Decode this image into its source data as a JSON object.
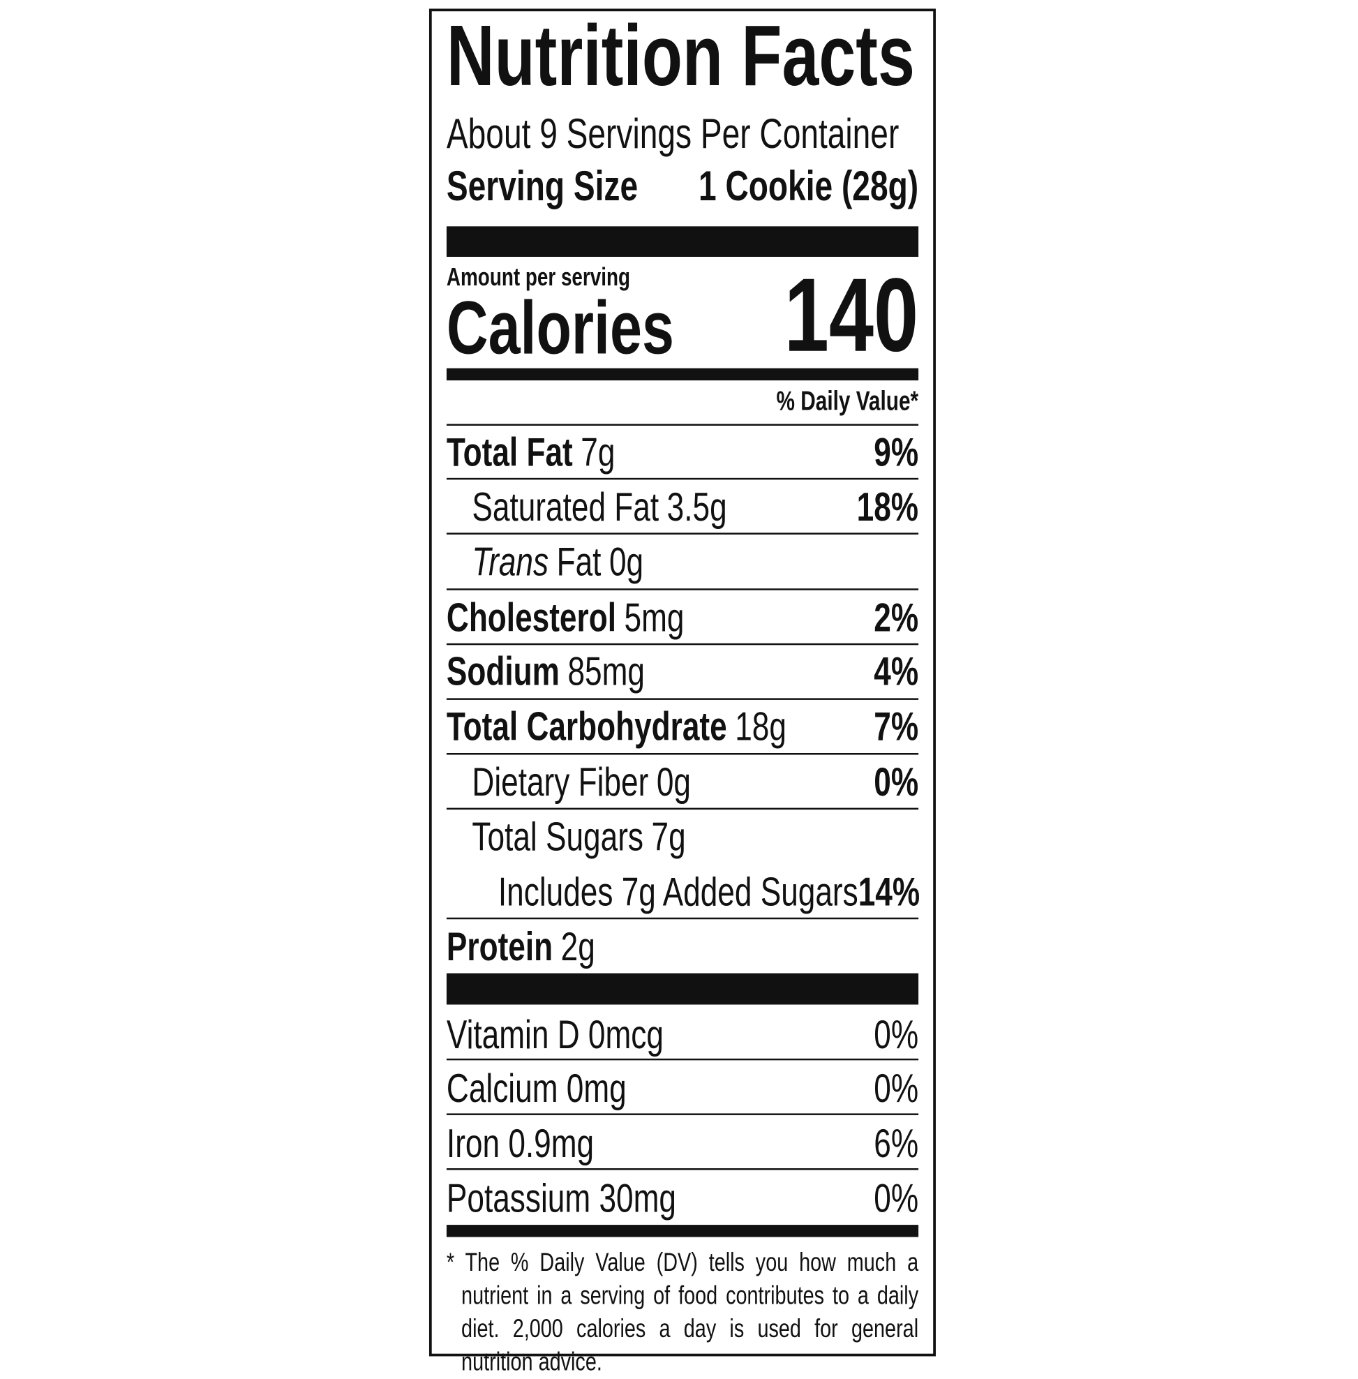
{
  "header": {
    "title": "Nutrition Facts",
    "servings": "About 9 Servings Per Container",
    "serving_size_label": "Serving Size",
    "serving_size_value": "1 Cookie (28g)"
  },
  "calories": {
    "amount_label": "Amount per serving",
    "label": "Calories",
    "value": "140"
  },
  "daily_value_header": "% Daily Value*",
  "nutrients": [
    {
      "name": "Total Fat",
      "amount": "7g",
      "dv": "9%"
    },
    {
      "name": "Saturated Fat",
      "amount": "3.5g",
      "dv": "18%"
    },
    {
      "name_italic": "Trans",
      "name": "Fat",
      "amount": "0g"
    },
    {
      "name": "Cholesterol",
      "amount": "5mg",
      "dv": "2%"
    },
    {
      "name": "Sodium",
      "amount": "85mg",
      "dv": "4%"
    },
    {
      "name": "Total Carbohydrate",
      "amount": "18g",
      "dv": "7%"
    },
    {
      "name": "Dietary Fiber",
      "amount": "0g",
      "dv": "0%"
    },
    {
      "name": "Total Sugars",
      "amount": "7g"
    },
    {
      "name": "Includes 7g Added Sugars",
      "dv": "14%"
    },
    {
      "name": "Protein",
      "amount": "2g"
    }
  ],
  "vitamins": [
    {
      "name": "Vitamin D 0mcg",
      "dv": "0%"
    },
    {
      "name": "Calcium 0mg",
      "dv": "0%"
    },
    {
      "name": "Iron 0.9mg",
      "dv": "6%"
    },
    {
      "name": "Potassium 30mg",
      "dv": "0%"
    }
  ],
  "footnote": "* The % Daily Value (DV) tells you how much a nutrient in a serving of food contributes to a daily diet. 2,000 calories a day is used for general nutrition advice."
}
